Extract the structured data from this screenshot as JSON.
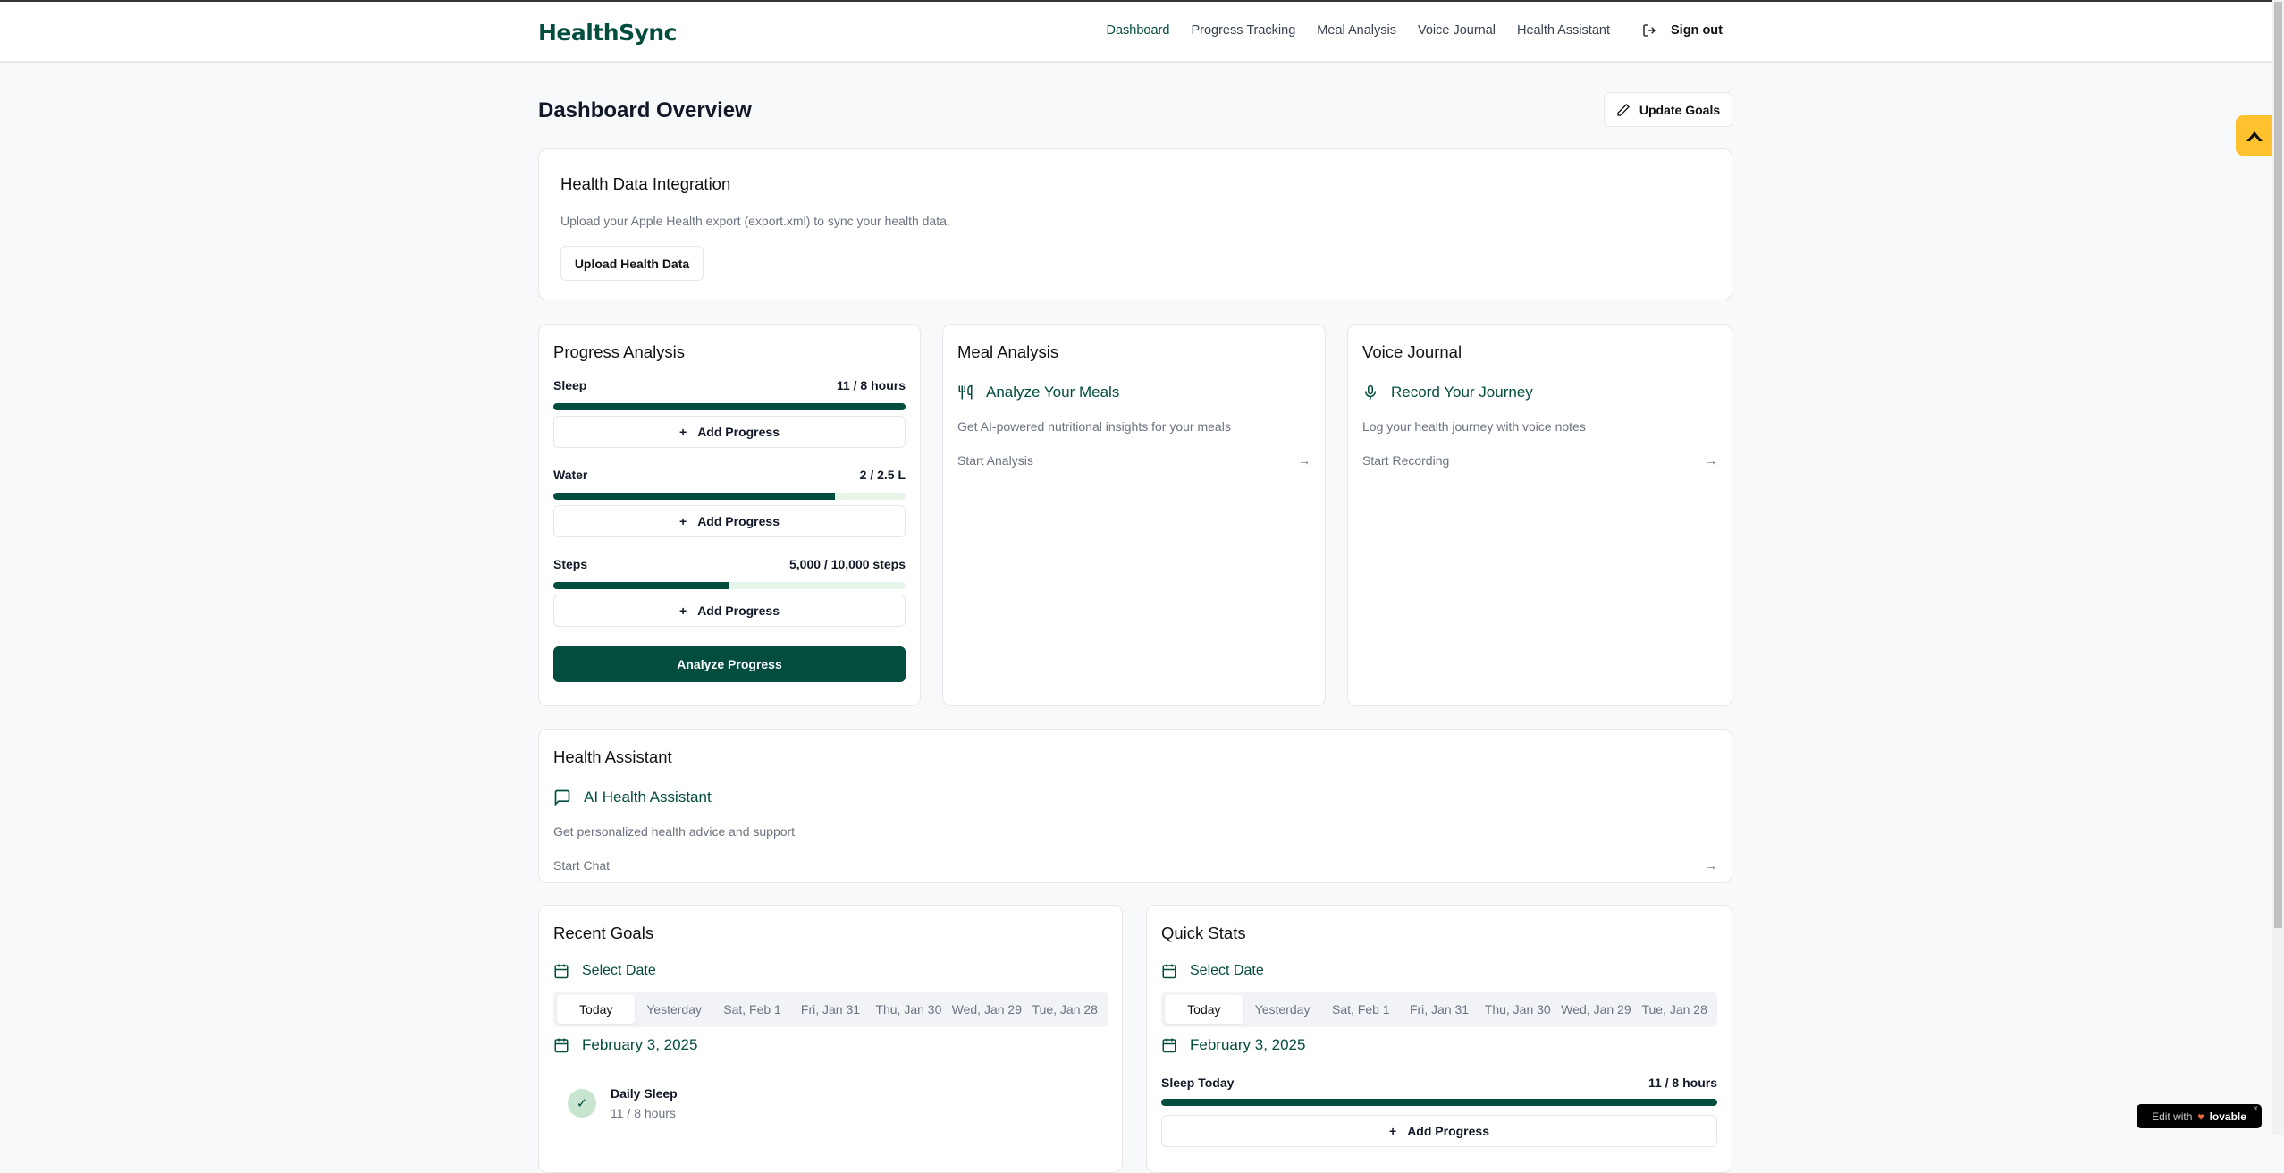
{
  "header": {
    "logo": "HealthSync",
    "nav": [
      "Dashboard",
      "Progress Tracking",
      "Meal Analysis",
      "Voice Journal",
      "Health Assistant"
    ],
    "sign_out": "Sign out"
  },
  "page": {
    "title": "Dashboard Overview",
    "update_goals": "Update Goals"
  },
  "integration": {
    "title": "Health Data Integration",
    "desc": "Upload your Apple Health export (export.xml) to sync your health data.",
    "button": "Upload Health Data"
  },
  "progress": {
    "title": "Progress Analysis",
    "items": [
      {
        "label": "Sleep",
        "value": "11 / 8 hours",
        "percent": 100
      },
      {
        "label": "Water",
        "value": "2 / 2.5 L",
        "percent": 80
      },
      {
        "label": "Steps",
        "value": "5,000 / 10,000 steps",
        "percent": 50
      }
    ],
    "add_label": "Add Progress",
    "analyze": "Analyze Progress"
  },
  "meal": {
    "title": "Meal Analysis",
    "feature": "Analyze Your Meals",
    "desc": "Get AI-powered nutritional insights for your meals",
    "link": "Start Analysis"
  },
  "voice": {
    "title": "Voice Journal",
    "feature": "Record Your Journey",
    "desc": "Log your health journey with voice notes",
    "link": "Start Recording"
  },
  "assistant": {
    "title": "Health Assistant",
    "feature": "AI Health Assistant",
    "desc": "Get personalized health advice and support",
    "link": "Start Chat"
  },
  "date_tabs": [
    "Today",
    "Yesterday",
    "Sat, Feb 1",
    "Fri, Jan 31",
    "Thu, Jan 30",
    "Wed, Jan 29",
    "Tue, Jan 28"
  ],
  "recent": {
    "title": "Recent Goals",
    "select": "Select Date",
    "date": "February 3, 2025",
    "goal": {
      "name": "Daily Sleep",
      "value": "11 / 8 hours"
    }
  },
  "quick": {
    "title": "Quick Stats",
    "select": "Select Date",
    "date": "February 3, 2025",
    "stat": {
      "label": "Sleep Today",
      "value": "11 / 8 hours",
      "percent": 100
    },
    "add_label": "Add Progress"
  },
  "badge": {
    "edit_with": "Edit with",
    "brand": "lovable"
  },
  "colors": {
    "primary": "#034d3f",
    "track": "#e6f4ea",
    "accent_tab": "#ffc12e"
  }
}
